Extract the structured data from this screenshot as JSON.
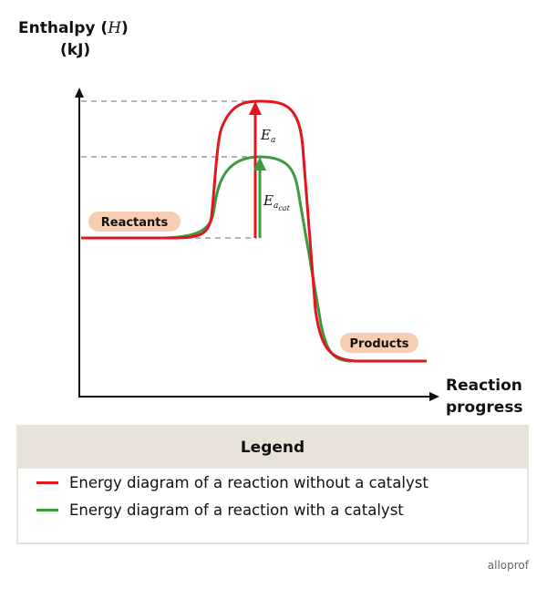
{
  "axes": {
    "y_label_line1": "Enthalpy (",
    "y_label_var": "H",
    "y_label_line1_end": ")",
    "y_label_line2": "(kJ)",
    "x_label_line1": "Reaction",
    "x_label_line2": "progress"
  },
  "labels": {
    "reactants": "Reactants",
    "products": "Products",
    "ea": "E",
    "ea_sub": "a",
    "eacat": "E",
    "eacat_sub": "a",
    "eacat_subsub": "cat"
  },
  "legend": {
    "title": "Legend",
    "items": [
      {
        "color": "#e3161b",
        "text": "Energy diagram of a reaction without a catalyst"
      },
      {
        "color": "#3d9a3f",
        "text": "Energy diagram of a reaction with a catalyst"
      }
    ]
  },
  "colors": {
    "uncatalyzed": "#e3161b",
    "catalyzed": "#3d9a3f",
    "pill": "#f7cdb3",
    "dash": "#9a9a9a"
  },
  "watermark": "alloprof"
}
